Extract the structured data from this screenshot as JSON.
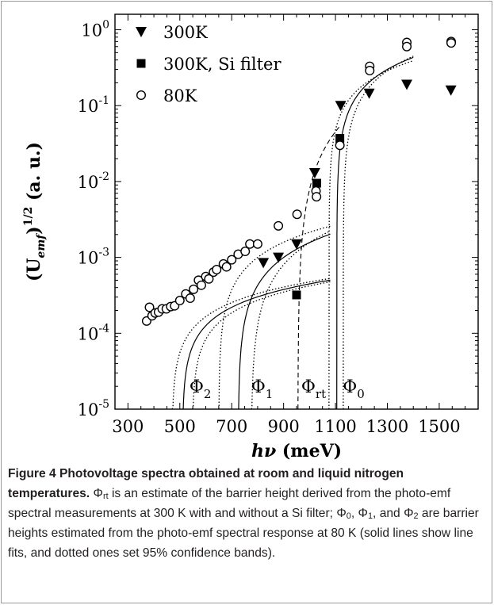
{
  "chart_data": {
    "type": "scatter",
    "xlabel": {
      "main": "hν",
      "unit": "(meV)"
    },
    "ylabel": {
      "main": "(U",
      "sub": "emf",
      "sup": "1/2",
      "unit": "(a. u.)"
    },
    "y_scale": "log",
    "xlim": [
      250,
      1650
    ],
    "ylim": [
      1e-05,
      1.6
    ],
    "x_ticks": [
      300,
      500,
      700,
      900,
      1100,
      1300,
      1500
    ],
    "y_ticks": [
      {
        "value": 1e-05,
        "base": "10",
        "exp": "-5"
      },
      {
        "value": 0.0001,
        "base": "10",
        "exp": "-4"
      },
      {
        "value": 0.001,
        "base": "10",
        "exp": "-3"
      },
      {
        "value": 0.01,
        "base": "10",
        "exp": "-2"
      },
      {
        "value": 0.1,
        "base": "10",
        "exp": "-1"
      },
      {
        "value": 1,
        "base": "10",
        "exp": "0"
      }
    ],
    "grid": false,
    "legend_position": "top-left",
    "series": [
      {
        "name": "300K",
        "marker": "triangle-down",
        "points": [
          [
            822,
            0.00085
          ],
          [
            880,
            0.001
          ],
          [
            950,
            0.0015
          ],
          [
            1020,
            0.013
          ],
          [
            1120,
            0.1
          ],
          [
            1230,
            0.145
          ],
          [
            1375,
            0.19
          ],
          [
            1545,
            0.16
          ]
        ]
      },
      {
        "name": "300K, Si filter",
        "marker": "square",
        "points": [
          [
            950,
            0.00032
          ],
          [
            1028,
            0.0095
          ],
          [
            1117,
            0.037
          ]
        ]
      },
      {
        "name": "80K",
        "marker": "circle-open",
        "points": [
          [
            372,
            0.000145
          ],
          [
            383,
            0.00022
          ],
          [
            393,
            0.00017
          ],
          [
            405,
            0.000185
          ],
          [
            418,
            0.00019
          ],
          [
            432,
            0.00021
          ],
          [
            448,
            0.00021
          ],
          [
            465,
            0.000225
          ],
          [
            480,
            0.00023
          ],
          [
            500,
            0.00027
          ],
          [
            523,
            0.00033
          ],
          [
            540,
            0.00029
          ],
          [
            553,
            0.00038
          ],
          [
            572,
            0.0005
          ],
          [
            583,
            0.00043
          ],
          [
            600,
            0.00056
          ],
          [
            612,
            0.00052
          ],
          [
            630,
            0.00064
          ],
          [
            642,
            0.00069
          ],
          [
            668,
            0.00082
          ],
          [
            680,
            0.00075
          ],
          [
            700,
            0.00093
          ],
          [
            725,
            0.0011
          ],
          [
            752,
            0.0012
          ],
          [
            770,
            0.0015
          ],
          [
            800,
            0.0015
          ],
          [
            880,
            0.0026
          ],
          [
            952,
            0.0037
          ],
          [
            1025,
            0.0075
          ],
          [
            1027,
            0.0063
          ],
          [
            1117,
            0.03
          ],
          [
            1232,
            0.33
          ],
          [
            1232,
            0.29
          ],
          [
            1375,
            0.68
          ],
          [
            1375,
            0.6
          ],
          [
            1546,
            0.7
          ],
          [
            1546,
            0.67
          ]
        ]
      }
    ],
    "fit_lines": {
      "phi2": {
        "threshold": 510,
        "a": 4.3e-06,
        "p": 0.75
      },
      "phi2_band": [
        {
          "threshold": 470,
          "a": 4.3e-06,
          "p": 0.75
        },
        {
          "threshold": 548,
          "a": 4.3e-06,
          "p": 0.75
        }
      ],
      "phi1": {
        "threshold": 725,
        "a": 5.7e-06,
        "p": 1.0
      },
      "phi1_band": [
        {
          "threshold": 650,
          "a": 1.1e-05,
          "p": 0.9
        },
        {
          "threshold": 775,
          "a": 3.1e-06,
          "p": 1.15
        }
      ],
      "phirt": {
        "threshold": 955,
        "a": 2.6e-05,
        "p": 1.5
      },
      "phi0": {
        "threshold": 1105,
        "a": 0.0029,
        "p": 0.88,
        "x_end": 1400
      },
      "phi0_band": [
        {
          "threshold": 1075,
          "a": 0.0034,
          "p": 0.82,
          "x_end": 1400
        },
        {
          "threshold": 1130,
          "a": 0.0022,
          "p": 0.95,
          "x_end": 1400
        }
      ]
    },
    "annotations": [
      {
        "base": "Φ",
        "sub": "2",
        "x": 537
      },
      {
        "base": "Φ",
        "sub": "1",
        "x": 775
      },
      {
        "base": "Φ",
        "sub": "rt",
        "x": 968
      },
      {
        "base": "Φ",
        "sub": "0",
        "x": 1128
      }
    ]
  },
  "caption": {
    "head": "Figure 4 Photovoltage spectra obtained at room and liquid nitrogen temperatures.",
    "phi": "Φ",
    "rt": "rt",
    "p1": " is an estimate of the barrier height derived from the photo-emf spectral measurements at 300 K with and without a Si filter; ",
    "s0": "0",
    "p2": ", ",
    "s1": "1",
    "p3": ", and ",
    "s2": "2",
    "p4": " are barrier heights estimated from the photo-emf spectral response at 80 K (solid lines show line fits, and dotted ones set 95% confidence bands)."
  }
}
